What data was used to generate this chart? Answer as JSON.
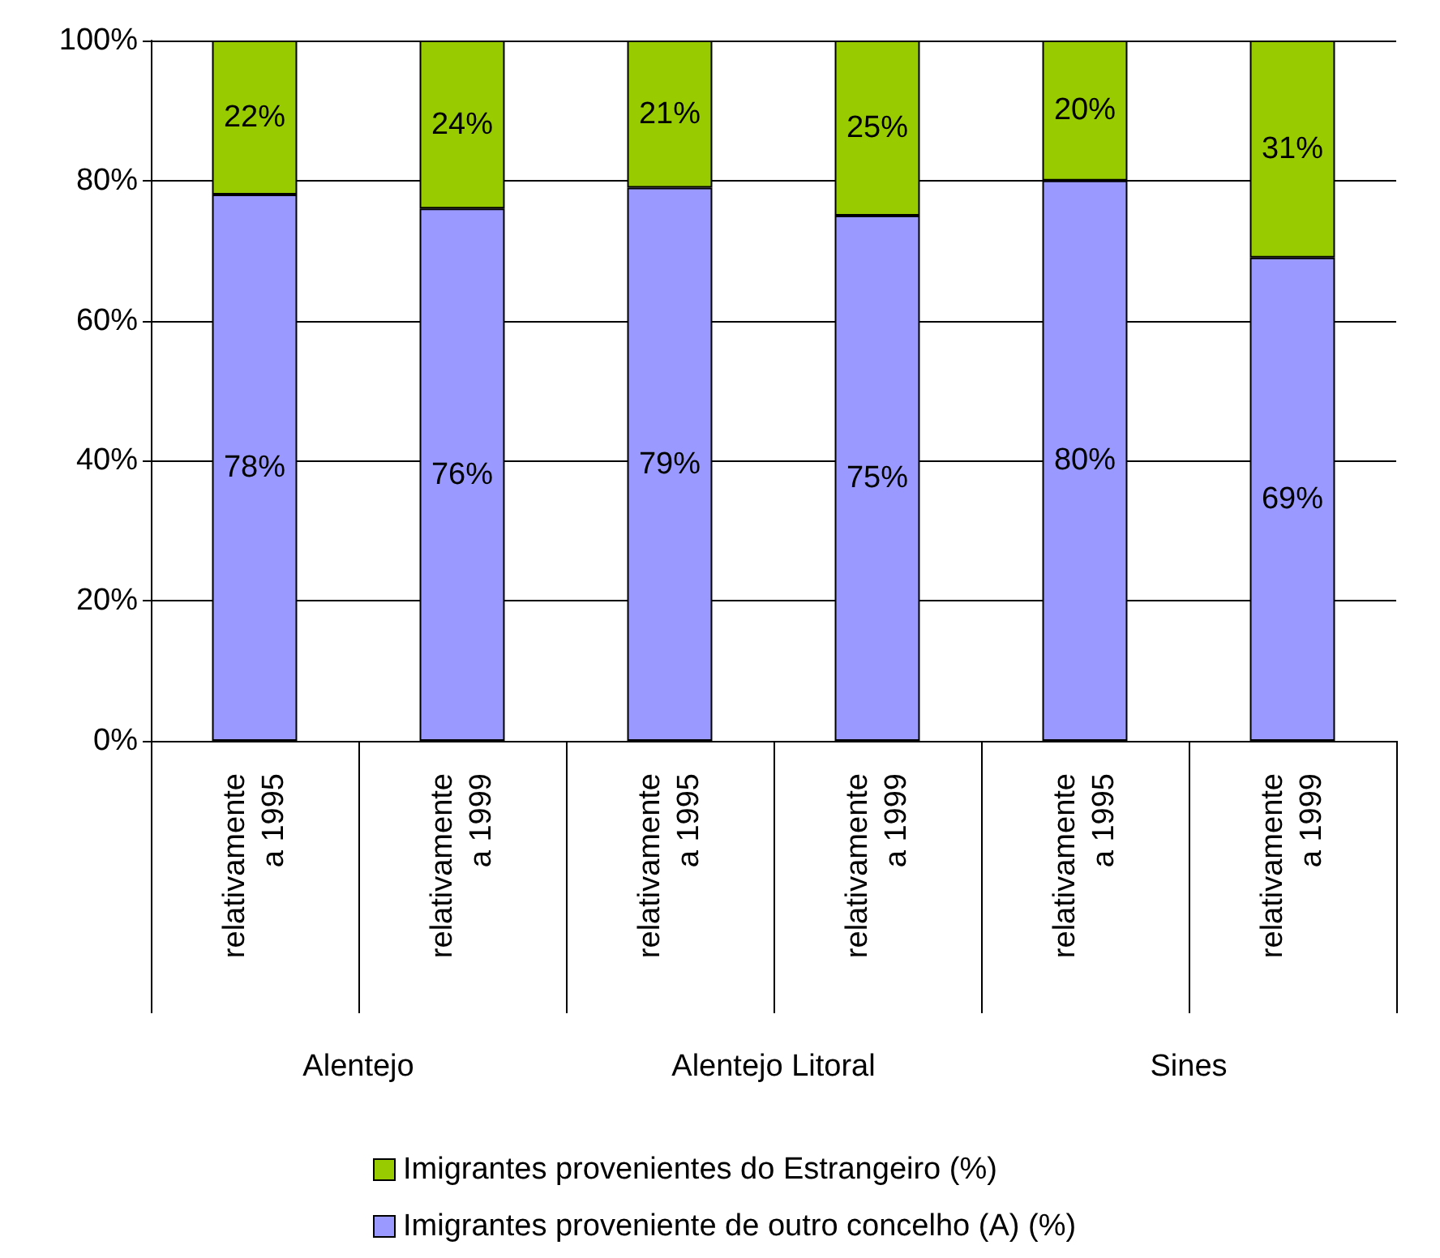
{
  "chart_data": {
    "type": "bar",
    "stacked": true,
    "categories": [
      "relativamente a 1995",
      "relativamente a 1999",
      "relativamente a 1995",
      "relativamente a 1999",
      "relativamente a 1995",
      "relativamente a 1999"
    ],
    "annotations": [
      "Alentejo",
      "Alentejo Litoral",
      "Sines"
    ],
    "series": [
      {
        "name": "Imigrantes proveniente de outro concelho (A) (%)",
        "color": "#9999ff",
        "values": [
          78,
          76,
          79,
          75,
          80,
          69
        ],
        "value_labels": [
          "78%",
          "76%",
          "79%",
          "75%",
          "80%",
          "69%"
        ]
      },
      {
        "name": "Imigrantes provenientes do Estrangeiro (%)",
        "color": "#99cc00",
        "values": [
          22,
          24,
          21,
          25,
          20,
          31
        ],
        "value_labels": [
          "22%",
          "24%",
          "21%",
          "25%",
          "20%",
          "31%"
        ]
      }
    ],
    "ylim": [
      0,
      100
    ],
    "yticks": [
      {
        "value": 0,
        "label": "0%"
      },
      {
        "value": 20,
        "label": "20%"
      },
      {
        "value": 40,
        "label": "40%"
      },
      {
        "value": 60,
        "label": "60%"
      },
      {
        "value": 80,
        "label": "80%"
      },
      {
        "value": 100,
        "label": "100%"
      }
    ],
    "grid": "y",
    "legend": "bottom"
  }
}
